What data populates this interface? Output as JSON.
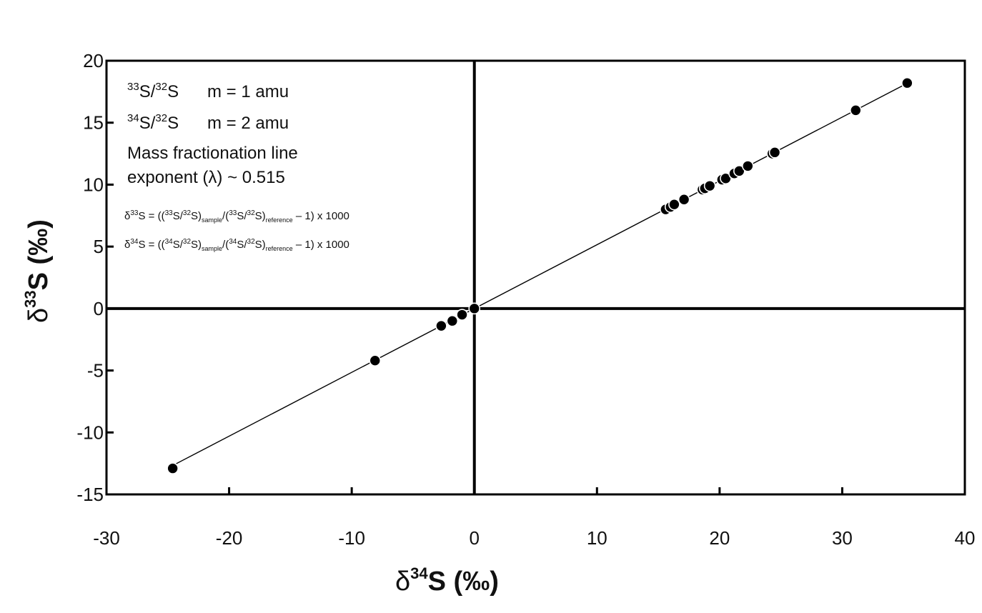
{
  "chart_data": {
    "type": "scatter",
    "xlim": [
      -30,
      40
    ],
    "ylim": [
      -15,
      20
    ],
    "x_ticks": [
      -30,
      -20,
      -10,
      0,
      10,
      20,
      30,
      40
    ],
    "y_ticks": [
      -15,
      -10,
      -5,
      0,
      5,
      10,
      15,
      20
    ],
    "x_tick_labels": [
      "-30",
      "-20",
      "-10",
      "0",
      "10",
      "20",
      "30",
      "40"
    ],
    "y_tick_labels": [
      "-15",
      "-10",
      "-5",
      "0",
      "5",
      "10",
      "15",
      "20"
    ],
    "xlabel": {
      "delta": "δ",
      "sup": "34",
      "rest": "S (‰)"
    },
    "ylabel": {
      "delta": "δ",
      "sup": "33",
      "rest": "S (‰)"
    },
    "grid": false,
    "reference_lines": {
      "x0": true,
      "y0": true
    },
    "fit_line": {
      "slope": 0.515,
      "x_range": [
        -24.6,
        35.3
      ]
    },
    "points": [
      {
        "x": -24.6,
        "y": -12.9
      },
      {
        "x": -8.1,
        "y": -4.2
      },
      {
        "x": -2.7,
        "y": -1.4
      },
      {
        "x": -1.8,
        "y": -1.0
      },
      {
        "x": -1.0,
        "y": -0.5
      },
      {
        "x": 0.0,
        "y": 0.0
      },
      {
        "x": 15.6,
        "y": 8.0
      },
      {
        "x": 16.0,
        "y": 8.2
      },
      {
        "x": 16.3,
        "y": 8.4
      },
      {
        "x": 17.1,
        "y": 8.8
      },
      {
        "x": 18.6,
        "y": 9.6
      },
      {
        "x": 18.8,
        "y": 9.7
      },
      {
        "x": 19.2,
        "y": 9.9
      },
      {
        "x": 20.2,
        "y": 10.4
      },
      {
        "x": 20.5,
        "y": 10.5
      },
      {
        "x": 21.2,
        "y": 10.9
      },
      {
        "x": 21.6,
        "y": 11.1
      },
      {
        "x": 22.3,
        "y": 11.5
      },
      {
        "x": 24.3,
        "y": 12.5
      },
      {
        "x": 24.5,
        "y": 12.6
      },
      {
        "x": 31.1,
        "y": 16.0
      },
      {
        "x": 35.3,
        "y": 18.2
      }
    ],
    "marker_color": "#000000",
    "line_color": "#000000"
  },
  "annotations": {
    "line1": {
      "a": "33",
      "b": "S/",
      "c": "32",
      "d": "S",
      "e": "m = 1 amu"
    },
    "line2": {
      "a": "34",
      "b": "S/",
      "c": "32",
      "d": "S",
      "e": "m = 2 amu"
    },
    "line3": "Mass fractionation line",
    "line4": "exponent (λ) ~ 0.515",
    "formula33": {
      "p1": "δ",
      "p2": "33",
      "p3": "S = ((",
      "p4": "33",
      "p5": "S/",
      "p6": "32",
      "p7": "S)",
      "p8": "sample",
      "p9": "/(",
      "p10": "33",
      "p11": "S/",
      "p12": "32",
      "p13": "S)",
      "p14": "reference",
      "p15": " – 1) x 1000"
    },
    "formula34": {
      "p1": "δ",
      "p2": "34",
      "p3": "S = ((",
      "p4": "34",
      "p5": "S/",
      "p6": "32",
      "p7": "S)",
      "p8": "sample",
      "p9": "/(",
      "p10": "34",
      "p11": "S/",
      "p12": "32",
      "p13": "S)",
      "p14": "reference",
      "p15": " – 1) x 1000"
    }
  }
}
